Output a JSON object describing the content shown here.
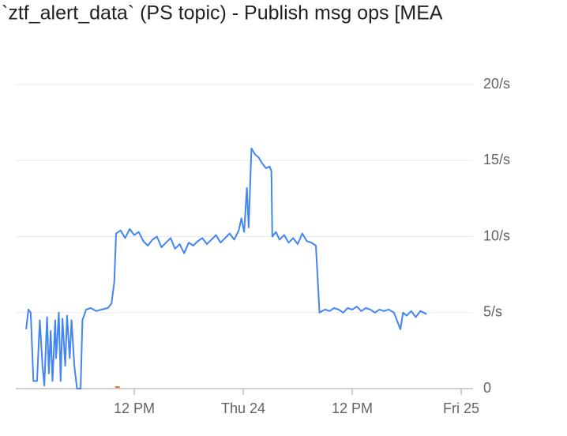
{
  "chart_data": {
    "type": "line",
    "title": "`ztf_alert_data` (PS topic) - Publish msg ops [MEA",
    "xlim": [
      -1.04,
      49.3
    ],
    "xticks": [
      {
        "value": 12,
        "label": "12 PM"
      },
      {
        "value": 24,
        "label": "Thu 24"
      },
      {
        "value": 36,
        "label": "12 PM"
      },
      {
        "value": 48,
        "label": "Fri 25"
      }
    ],
    "ylim": [
      0,
      20
    ],
    "yticks": [
      0,
      {
        "value": 5,
        "label": "5/s"
      },
      {
        "value": 10,
        "label": "10/s"
      },
      {
        "value": 15,
        "label": "15/s"
      },
      {
        "value": 20,
        "label": "20/s"
      }
    ],
    "grid": true,
    "series": [
      {
        "color": "#4285f4",
        "x": [
          0.1,
          0.35,
          0.6,
          0.9,
          1.3,
          1.6,
          1.9,
          2.1,
          2.4,
          2.6,
          2.8,
          3.0,
          3.3,
          3.4,
          3.7,
          3.9,
          4.1,
          4.4,
          4.6,
          4.9,
          5.1,
          5.4,
          5.7,
          6.1,
          6.3,
          6.7,
          7.2,
          7.8,
          8.4,
          9.1,
          9.5,
          9.8,
          10,
          10.5,
          11,
          11.5,
          12,
          12.5,
          13,
          13.5,
          14,
          14.5,
          15,
          15.5,
          16,
          16.5,
          17,
          17.5,
          18,
          18.5,
          19,
          19.5,
          20,
          20.5,
          21,
          21.5,
          22,
          22.5,
          23.0,
          23.5,
          23.8,
          24.1,
          24.4,
          24.6,
          24.9,
          25.3,
          25.7,
          26.1,
          26.5,
          26.9,
          27.1,
          27.2,
          27.6,
          28.0,
          28.5,
          29,
          29.5,
          30,
          30.5,
          31,
          31.5,
          32,
          32.4,
          33,
          33.5,
          34,
          34.5,
          35,
          35.5,
          36,
          36.5,
          37,
          37.5,
          38,
          38.5,
          39,
          39.5,
          40,
          40.6,
          41.3,
          41.6,
          42,
          42.5,
          43,
          43.5,
          44.2
        ],
        "values": [
          3.9,
          5.2,
          5.0,
          0.5,
          0.5,
          4.5,
          1.5,
          0.2,
          4.7,
          1.0,
          3.8,
          0.5,
          4.5,
          2.0,
          5.0,
          0.5,
          4.6,
          1.5,
          4.8,
          2.0,
          4.5,
          1.5,
          0,
          0,
          4.5,
          5.2,
          5.3,
          5.1,
          5.2,
          5.3,
          5.6,
          7.0,
          10.2,
          10.4,
          9.9,
          10.5,
          10.1,
          10.3,
          9.7,
          9.4,
          9.8,
          10.0,
          9.3,
          9.6,
          9.9,
          9.2,
          9.5,
          8.9,
          9.6,
          9.4,
          9.7,
          9.9,
          9.5,
          9.8,
          10.1,
          9.6,
          9.9,
          10.2,
          9.8,
          10.4,
          11.2,
          10.3,
          13.2,
          10.6,
          15.8,
          15.4,
          15.2,
          14.8,
          14.5,
          14.6,
          14.3,
          10.0,
          10.3,
          9.8,
          10.1,
          9.6,
          9.9,
          9.5,
          10.2,
          9.7,
          9.6,
          9.4,
          5.0,
          5.2,
          5.1,
          5.3,
          5.2,
          5.0,
          5.3,
          5.2,
          5.4,
          5.1,
          5.3,
          5.2,
          5.0,
          5.2,
          5.1,
          5.2,
          5.0,
          3.9,
          5.0,
          4.8,
          5.1,
          4.7,
          5.1,
          4.9
        ]
      },
      {
        "color": "#e8710a",
        "x": [
          9.9,
          10.4
        ],
        "values": [
          0.1,
          0.1
        ]
      }
    ]
  }
}
